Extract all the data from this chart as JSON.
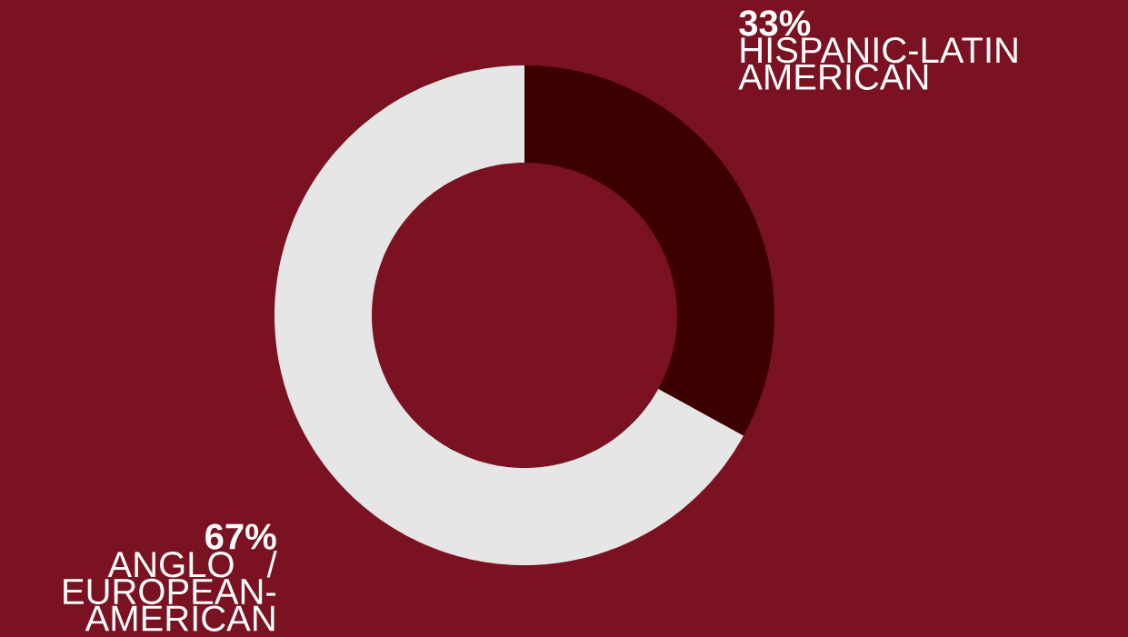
{
  "chart_data": {
    "type": "donut",
    "categories": [
      "HISPANIC-LATIN AMERICAN",
      "ANGLO / EUROPEAN-AMERICAN"
    ],
    "values": [
      33,
      67
    ],
    "value_labels": [
      "33%",
      "67%"
    ],
    "colors": [
      "#3d0000",
      "#e6e6e6"
    ]
  }
}
